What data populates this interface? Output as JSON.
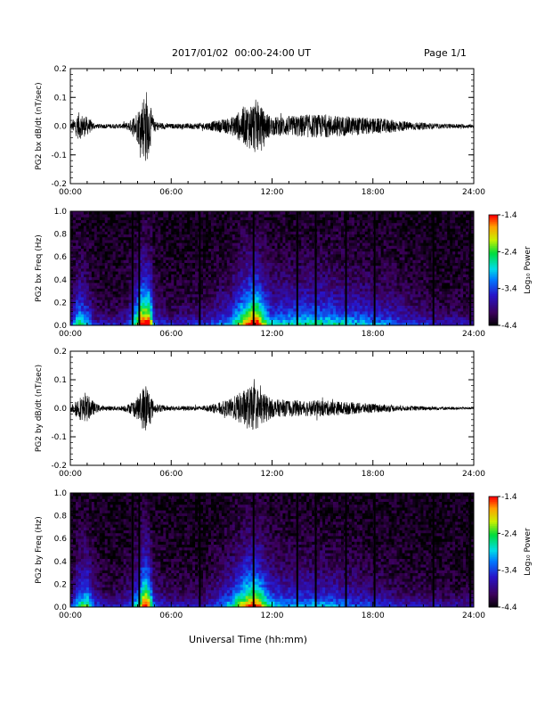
{
  "header": {
    "date_range": "2017/01/02  00:00-24:00 UT",
    "page": "Page 1/1"
  },
  "xlabel": "Universal Time (hh:mm)",
  "x_tick_labels": [
    "00:00",
    "06:00",
    "12:00",
    "18:00",
    "24:00"
  ],
  "colorbar": {
    "tick_labels": [
      "-1.4",
      "-2.4",
      "-3.4",
      "-4.4"
    ],
    "label": "Log₁₀ Power"
  },
  "chart_data": [
    {
      "type": "line",
      "ylabel": "PG2 bx dB/dt (nT/sec)",
      "xlim": [
        0,
        24
      ],
      "ylim": [
        -0.2,
        0.2
      ],
      "y_tick_labels": [
        "0.2",
        "0.1",
        "0.0",
        "-0.1",
        "-0.2"
      ],
      "envelope_hours": [
        0,
        0.5,
        1,
        1.5,
        2,
        3,
        3.5,
        4,
        4.5,
        5,
        6,
        8,
        9.5,
        10.5,
        11,
        11.5,
        12,
        13,
        14,
        15,
        16,
        17,
        18,
        19,
        20,
        21,
        22,
        23,
        24
      ],
      "envelope_amplitude": [
        0.01,
        0.06,
        0.04,
        0.01,
        0.01,
        0.01,
        0.02,
        0.07,
        0.17,
        0.02,
        0.01,
        0.015,
        0.035,
        0.09,
        0.12,
        0.07,
        0.04,
        0.045,
        0.05,
        0.05,
        0.045,
        0.04,
        0.035,
        0.03,
        0.02,
        0.015,
        0.01,
        0.01,
        0.008
      ]
    },
    {
      "type": "heatmap",
      "ylabel": "PG2 bx Freq (Hz)",
      "xlim": [
        0,
        24
      ],
      "ylim": [
        0,
        1
      ],
      "y_tick_labels": [
        "1.0",
        "0.8",
        "0.6",
        "0.4",
        "0.2",
        "0.0"
      ],
      "color_range": [
        -4.4,
        -1.4
      ],
      "dark_column_hours": [
        3.7,
        4.1,
        7.7,
        10.9,
        13.5,
        14.6,
        16.4,
        18.1,
        21.6,
        23.8
      ]
    },
    {
      "type": "line",
      "ylabel": "PG2 by dB/dt (nT/sec)",
      "xlim": [
        0,
        24
      ],
      "ylim": [
        -0.2,
        0.2
      ],
      "y_tick_labels": [
        "0.2",
        "0.1",
        "0.0",
        "-0.1",
        "-0.2"
      ],
      "envelope_hours": [
        0,
        0.5,
        1,
        1.5,
        2,
        3,
        3.5,
        4,
        4.5,
        5,
        6,
        8,
        8.5,
        9.5,
        10.5,
        11,
        11.5,
        12,
        13,
        14,
        15,
        16,
        17,
        18,
        19,
        20,
        21,
        22,
        23,
        24
      ],
      "envelope_amplitude": [
        0.01,
        0.05,
        0.06,
        0.02,
        0.01,
        0.01,
        0.02,
        0.05,
        0.12,
        0.02,
        0.01,
        0.01,
        0.02,
        0.04,
        0.09,
        0.1,
        0.07,
        0.04,
        0.035,
        0.035,
        0.035,
        0.03,
        0.025,
        0.02,
        0.015,
        0.01,
        0.01,
        0.008,
        0.006,
        0.005
      ]
    },
    {
      "type": "heatmap",
      "ylabel": "PG2 by Freq (Hz)",
      "xlim": [
        0,
        24
      ],
      "ylim": [
        0,
        1
      ],
      "y_tick_labels": [
        "1.0",
        "0.8",
        "0.6",
        "0.4",
        "0.2",
        "0.0"
      ],
      "color_range": [
        -4.4,
        -1.4
      ],
      "dark_column_hours": [
        3.7,
        4.1,
        7.7,
        10.9,
        13.5,
        14.6,
        16.4,
        18.1,
        21.6,
        23.8
      ]
    }
  ]
}
